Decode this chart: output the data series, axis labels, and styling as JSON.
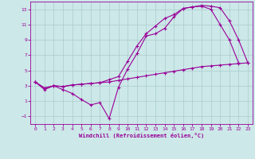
{
  "bg_color": "#cce8e8",
  "grid_color": "#aacccc",
  "line_color": "#990099",
  "xlim": [
    -0.5,
    23.5
  ],
  "ylim": [
    -2,
    14
  ],
  "xticks": [
    0,
    1,
    2,
    3,
    4,
    5,
    6,
    7,
    8,
    9,
    10,
    11,
    12,
    13,
    14,
    15,
    16,
    17,
    18,
    19,
    20,
    21,
    22,
    23
  ],
  "yticks": [
    -1,
    1,
    3,
    5,
    7,
    9,
    11,
    13
  ],
  "xlabel": "Windchill (Refroidissement éolien,°C)",
  "line1_x": [
    0,
    1,
    2,
    3,
    4,
    5,
    6,
    7,
    8,
    9,
    10,
    11,
    12,
    13,
    14,
    15,
    16,
    17,
    18,
    19,
    20,
    21,
    22
  ],
  "line1_y": [
    3.5,
    2.5,
    3.0,
    2.5,
    2.0,
    1.2,
    0.5,
    0.8,
    -1.3,
    2.8,
    5.2,
    7.2,
    9.5,
    9.8,
    10.5,
    12.0,
    13.1,
    13.3,
    13.4,
    13.0,
    11.0,
    9.0,
    6.0
  ],
  "line2_x": [
    0,
    1,
    2,
    3,
    4,
    5,
    6,
    7,
    8,
    9,
    10,
    11,
    12,
    13,
    14,
    15,
    16,
    17,
    18,
    19,
    20,
    21,
    22,
    23
  ],
  "line2_y": [
    3.5,
    2.7,
    3.0,
    2.9,
    3.1,
    3.2,
    3.3,
    3.4,
    3.5,
    3.7,
    3.9,
    4.1,
    4.3,
    4.5,
    4.7,
    4.9,
    5.1,
    5.3,
    5.5,
    5.6,
    5.7,
    5.8,
    5.9,
    6.0
  ],
  "line3_x": [
    0,
    1,
    2,
    3,
    4,
    5,
    6,
    7,
    8,
    9,
    10,
    11,
    12,
    13,
    14,
    15,
    16,
    17,
    18,
    19,
    20,
    21,
    22,
    23
  ],
  "line3_y": [
    3.5,
    2.7,
    3.0,
    2.9,
    3.1,
    3.2,
    3.3,
    3.4,
    3.8,
    4.2,
    6.2,
    8.2,
    9.8,
    10.8,
    11.8,
    12.3,
    13.1,
    13.3,
    13.5,
    13.4,
    13.2,
    11.5,
    9.0,
    6.0
  ]
}
